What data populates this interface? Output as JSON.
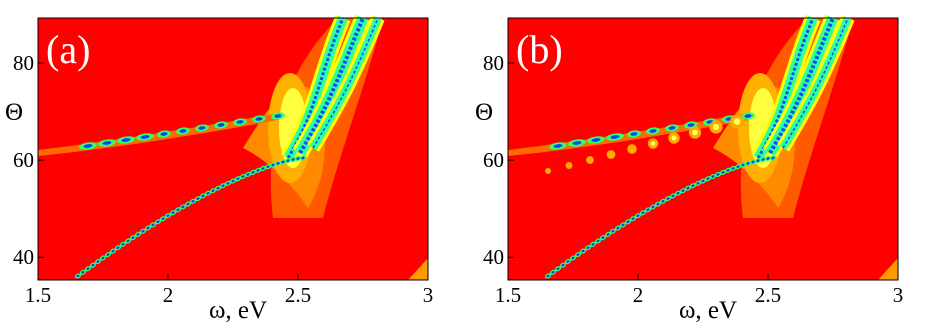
{
  "chart_data": [
    {
      "type": "contour",
      "panel_label": "(a)",
      "xlabel": "ω, eV",
      "ylabel": "Θ",
      "xlim": [
        1.5,
        3
      ],
      "ylim": [
        35.3,
        89.3
      ],
      "xticks": [
        1.5,
        2,
        2.5,
        3
      ],
      "yticks": [
        40,
        60,
        80
      ]
    },
    {
      "type": "contour",
      "panel_label": "(b)",
      "xlabel": "ω, eV",
      "ylabel": "Θ",
      "xlim": [
        1.5,
        3
      ],
      "ylim": [
        35.3,
        89.3
      ],
      "xticks": [
        1.5,
        2,
        2.5,
        3
      ],
      "yticks": [
        40,
        60,
        80
      ]
    }
  ]
}
